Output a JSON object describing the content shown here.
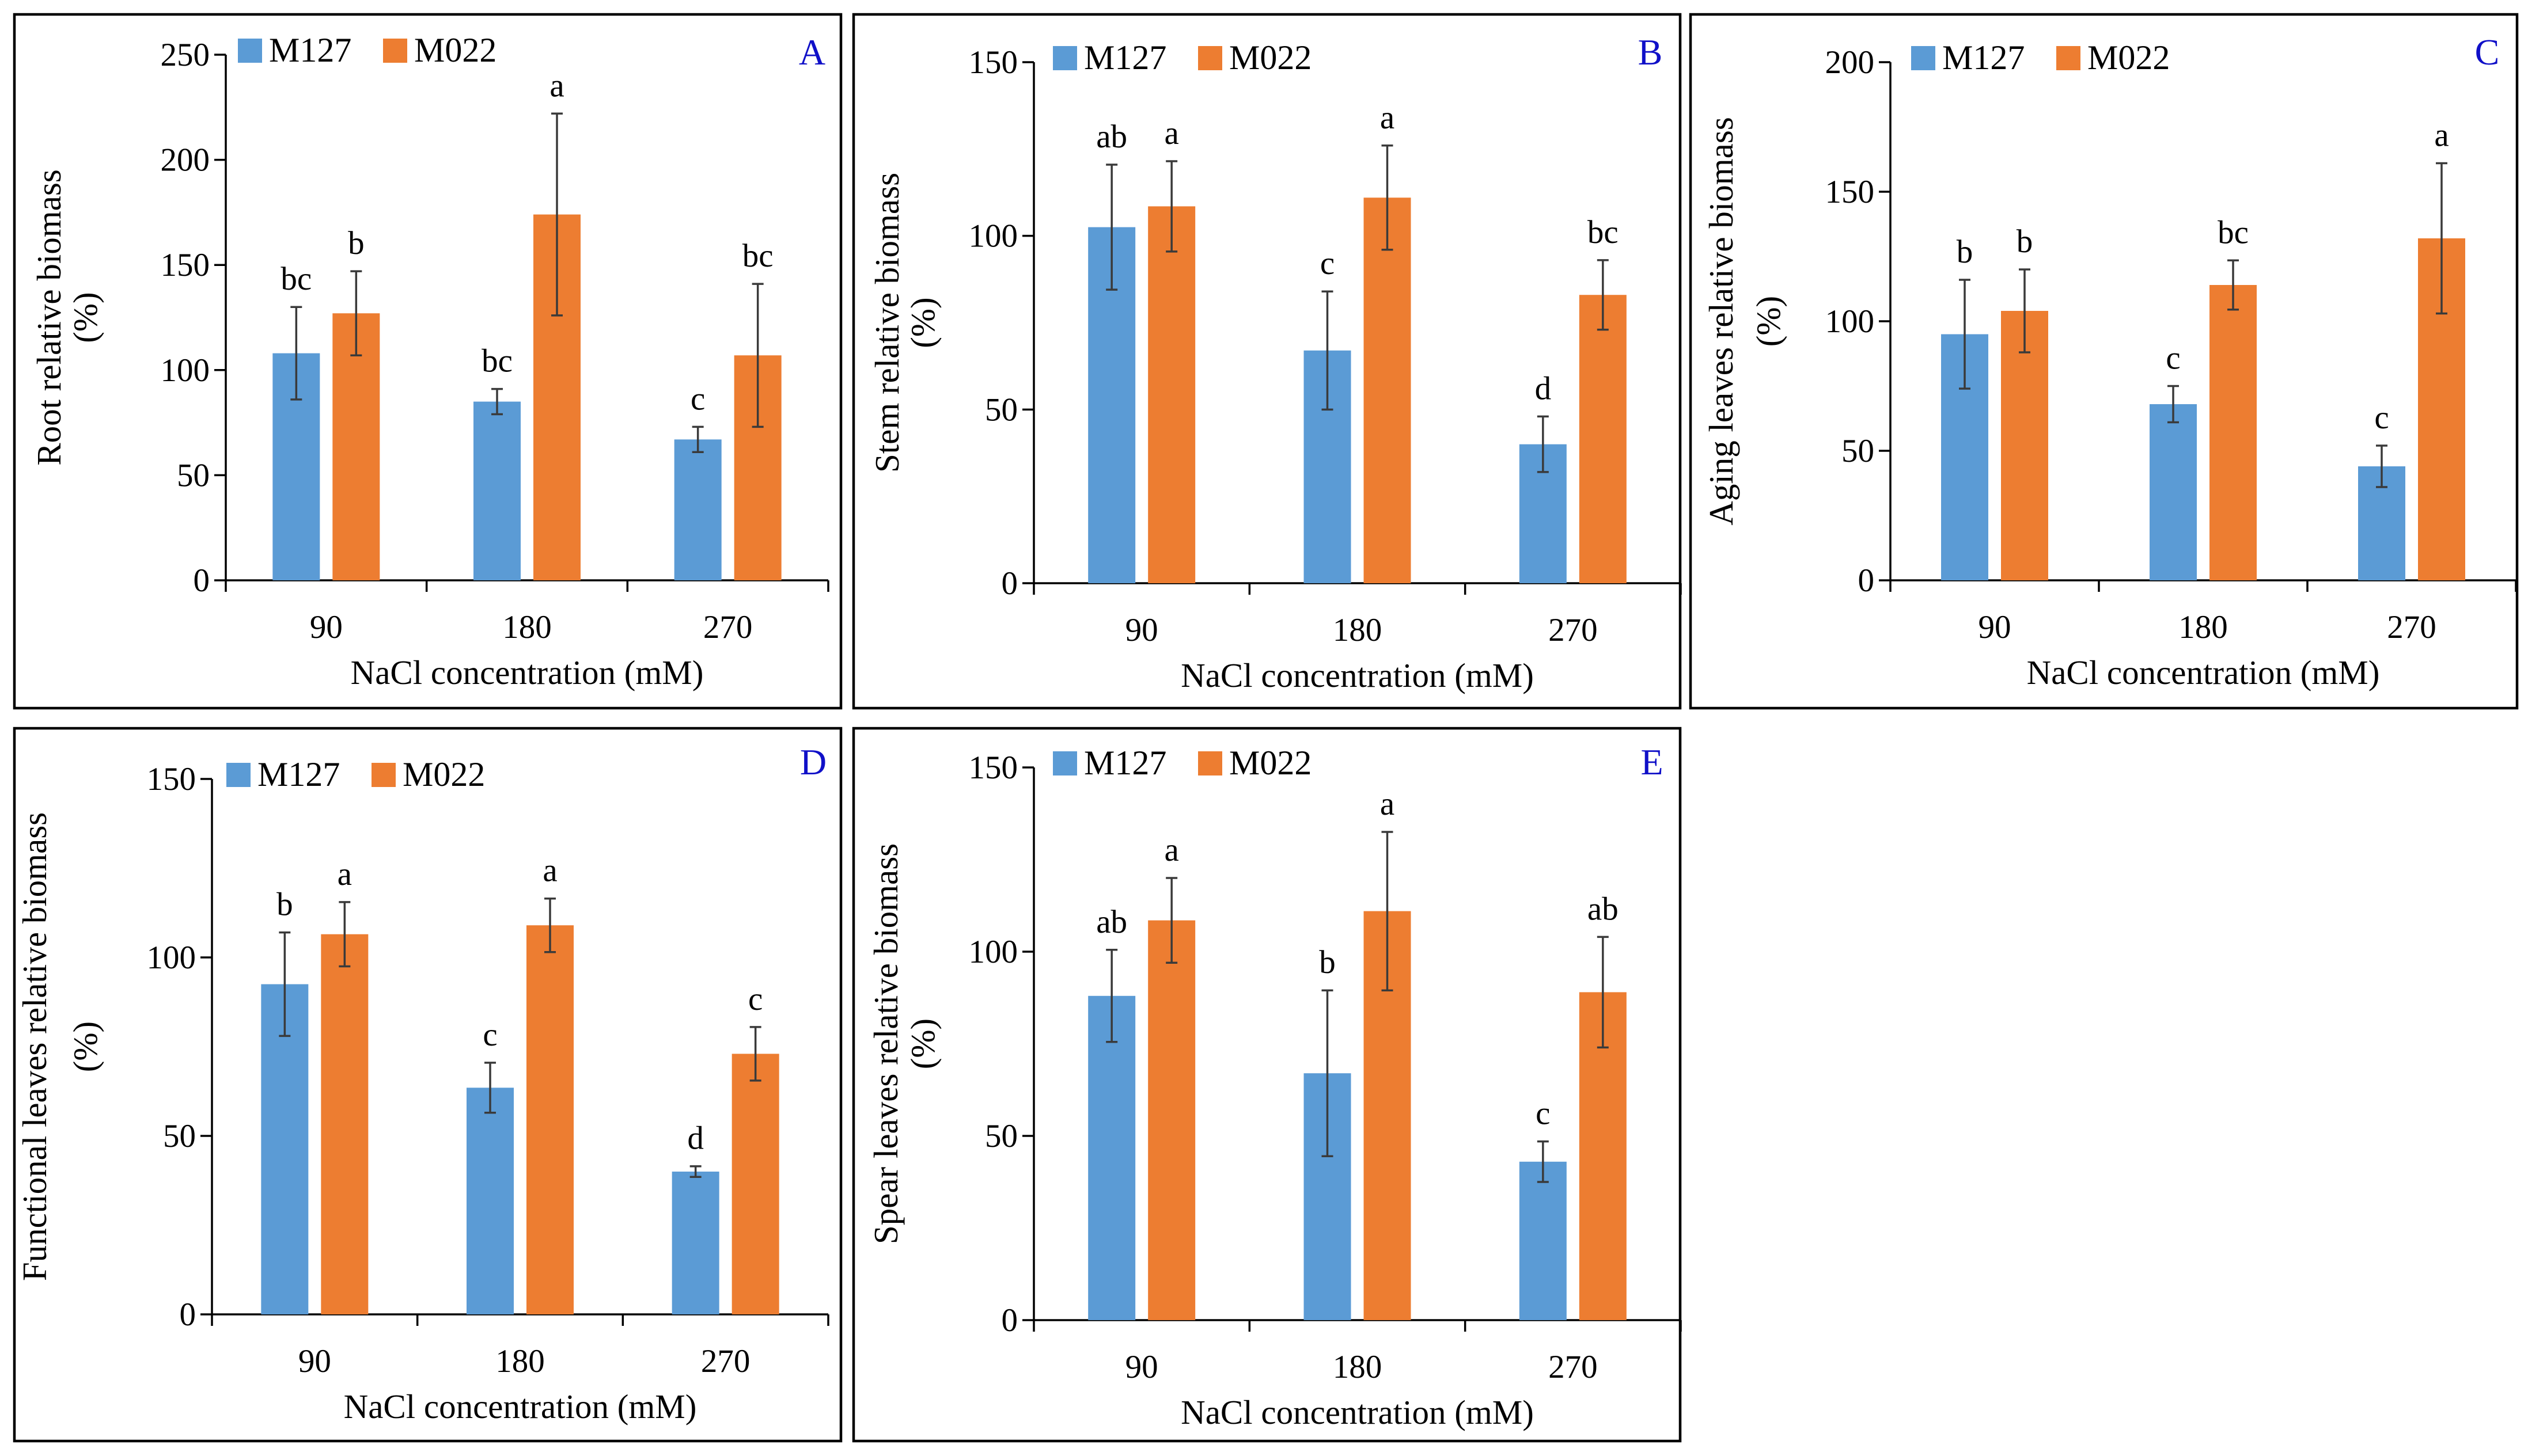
{
  "colors": {
    "M127": "#5B9BD5",
    "M022": "#ED7D31"
  },
  "chart_data": [
    {
      "panel": "A",
      "type": "bar",
      "categories": [
        "90",
        "180",
        "270"
      ],
      "xlabel": "NaCl concentration (mM)",
      "ylabel": [
        "Root relative biomass",
        "(%)"
      ],
      "ylim": [
        0,
        250
      ],
      "yticks": [
        "0",
        "50",
        "100",
        "150",
        "200",
        "250"
      ],
      "series": [
        {
          "name": "M127",
          "values": [
            108,
            85,
            67
          ],
          "errors": [
            22,
            6,
            6
          ],
          "letters": [
            "bc",
            "bc",
            "c"
          ]
        },
        {
          "name": "M022",
          "values": [
            127,
            174,
            107
          ],
          "errors": [
            20,
            48,
            34
          ],
          "letters": [
            "b",
            "a",
            "bc"
          ]
        }
      ]
    },
    {
      "panel": "B",
      "type": "bar",
      "categories": [
        "90",
        "180",
        "270"
      ],
      "xlabel": "NaCl concentration (mM)",
      "ylabel": [
        "Stem relative biomass",
        "(%)"
      ],
      "ylim": [
        0,
        150
      ],
      "yticks": [
        "0",
        "50",
        "100",
        "150"
      ],
      "series": [
        {
          "name": "M127",
          "values": [
            102.5,
            67,
            40
          ],
          "errors": [
            18,
            17,
            8
          ],
          "letters": [
            "ab",
            "c",
            "d"
          ]
        },
        {
          "name": "M022",
          "values": [
            108.5,
            111,
            83
          ],
          "errors": [
            13,
            15,
            10
          ],
          "letters": [
            "a",
            "a",
            "bc"
          ]
        }
      ]
    },
    {
      "panel": "C",
      "type": "bar",
      "categories": [
        "90",
        "180",
        "270"
      ],
      "xlabel": "NaCl concentration (mM)",
      "ylabel": [
        "Aging leaves relative biomass",
        "(%)"
      ],
      "ylim": [
        0,
        200
      ],
      "yticks": [
        "0",
        "50",
        "100",
        "150",
        "200"
      ],
      "series": [
        {
          "name": "M127",
          "values": [
            95,
            68,
            44
          ],
          "errors": [
            21,
            7,
            8
          ],
          "letters": [
            "b",
            "c",
            "c"
          ]
        },
        {
          "name": "M022",
          "values": [
            104,
            114,
            132
          ],
          "errors": [
            16,
            9.5,
            29
          ],
          "letters": [
            "b",
            "bc",
            "a"
          ]
        }
      ]
    },
    {
      "panel": "D",
      "type": "bar",
      "categories": [
        "90",
        "180",
        "270"
      ],
      "xlabel": "NaCl concentration (mM)",
      "ylabel": [
        "Functional leaves relative biomass",
        "(%)"
      ],
      "ylim": [
        0,
        150
      ],
      "yticks": [
        "0",
        "50",
        "100",
        "150"
      ],
      "series": [
        {
          "name": "M127",
          "values": [
            92.5,
            63.5,
            40
          ],
          "errors": [
            14.5,
            7,
            1.5
          ],
          "letters": [
            "b",
            "c",
            "d"
          ]
        },
        {
          "name": "M022",
          "values": [
            106.5,
            109,
            73
          ],
          "errors": [
            9,
            7.5,
            7.5
          ],
          "letters": [
            "a",
            "a",
            "c"
          ]
        }
      ]
    },
    {
      "panel": "E",
      "type": "bar",
      "categories": [
        "90",
        "180",
        "270"
      ],
      "xlabel": "NaCl concentration (mM)",
      "ylabel": [
        "Spear leaves relative biomass",
        "(%)"
      ],
      "ylim": [
        0,
        150
      ],
      "yticks": [
        "0",
        "50",
        "100",
        "150"
      ],
      "series": [
        {
          "name": "M127",
          "values": [
            88,
            67,
            43
          ],
          "errors": [
            12.5,
            22.5,
            5.5
          ],
          "letters": [
            "ab",
            "b",
            "c"
          ]
        },
        {
          "name": "M022",
          "values": [
            108.5,
            111,
            89
          ],
          "errors": [
            11.5,
            21.5,
            15
          ],
          "letters": [
            "a",
            "a",
            "ab"
          ]
        }
      ]
    }
  ]
}
